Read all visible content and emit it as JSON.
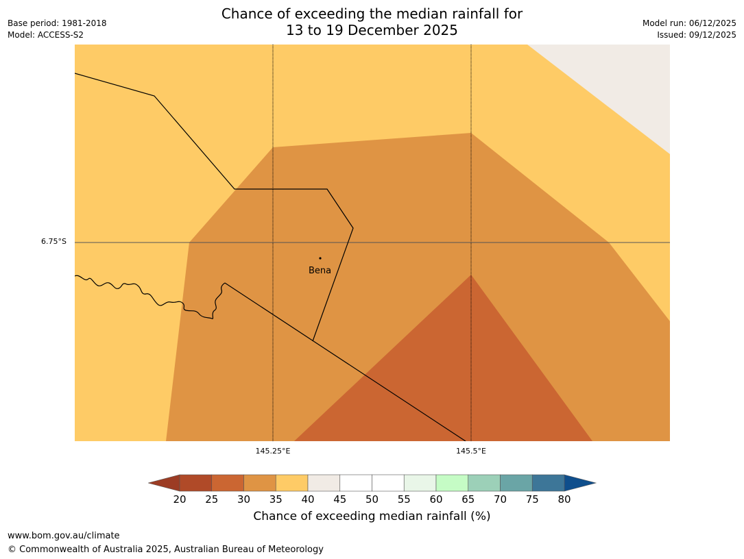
{
  "title": {
    "line1": "Chance of exceeding the median rainfall for",
    "line2": "13 to 19 December 2025"
  },
  "meta_left": {
    "base_period": "Base period: 1981-2018",
    "model": "Model: ACCESS-S2"
  },
  "meta_right": {
    "model_run": "Model run: 06/12/2025",
    "issued": "Issued: 09/12/2025"
  },
  "map": {
    "lat_labels": [
      "6.75°S"
    ],
    "lon_labels": [
      "145.25°E",
      "145.5°E"
    ],
    "town": "Bena",
    "zones": [
      {
        "category": "35-40",
        "color": "#fecb66"
      },
      {
        "category": "40-45",
        "color": "#f1ebe5"
      },
      {
        "category": "30-35",
        "color": "#df9444"
      },
      {
        "category": "25-30",
        "color": "#cb6632"
      }
    ]
  },
  "colorbar": {
    "ticks": [
      "20",
      "25",
      "30",
      "35",
      "40",
      "45",
      "50",
      "55",
      "60",
      "65",
      "70",
      "75",
      "80"
    ],
    "under_color": "#9c3c24",
    "over_color": "#0f4e8c",
    "colors": [
      "#b04a28",
      "#cb6632",
      "#df9444",
      "#fecb66",
      "#f1ebe5",
      "#ffffff",
      "#ffffff",
      "#e9f6e8",
      "#c5fcc5",
      "#9cd0b8",
      "#6aa5a6",
      "#3d7698"
    ],
    "label": "Chance of exceeding median rainfall (%)"
  },
  "footer": {
    "url": "www.bom.gov.au/climate",
    "copyright": "© Commonwealth of Australia 2025, Australian Bureau of Meteorology"
  }
}
